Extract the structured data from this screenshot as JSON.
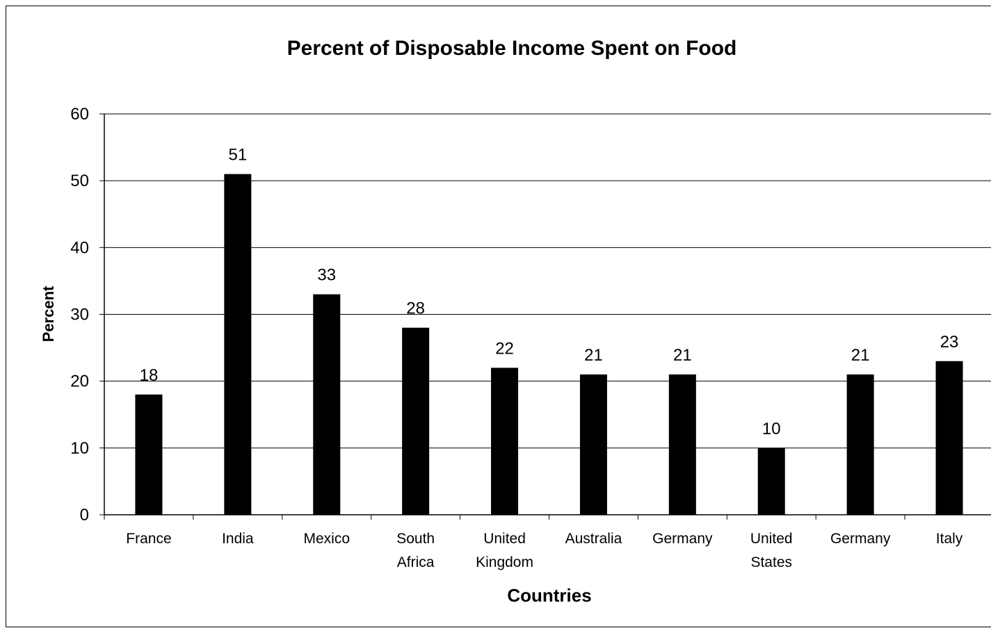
{
  "chart_data": {
    "type": "bar",
    "title": "Percent of Disposable Income Spent on Food",
    "xlabel": "Countries",
    "ylabel": "Percent",
    "categories": [
      [
        "France"
      ],
      [
        "India"
      ],
      [
        "Mexico"
      ],
      [
        "South",
        "Africa"
      ],
      [
        "United",
        "Kingdom"
      ],
      [
        "Australia"
      ],
      [
        "Germany"
      ],
      [
        "United",
        "States"
      ],
      [
        "Germany"
      ],
      [
        "Italy"
      ]
    ],
    "values": [
      18,
      51,
      33,
      28,
      22,
      21,
      21,
      10,
      21,
      23
    ],
    "data_labels": [
      "18",
      "51",
      "33",
      "28",
      "22",
      "21",
      "21",
      "10",
      "21",
      "23"
    ],
    "ylim": [
      0,
      60
    ],
    "yticks": [
      "0",
      "10",
      "20",
      "30",
      "40",
      "50",
      "60"
    ],
    "grid": true,
    "legend": "none",
    "bar_color": "#000000",
    "grid_color": "#000000"
  }
}
